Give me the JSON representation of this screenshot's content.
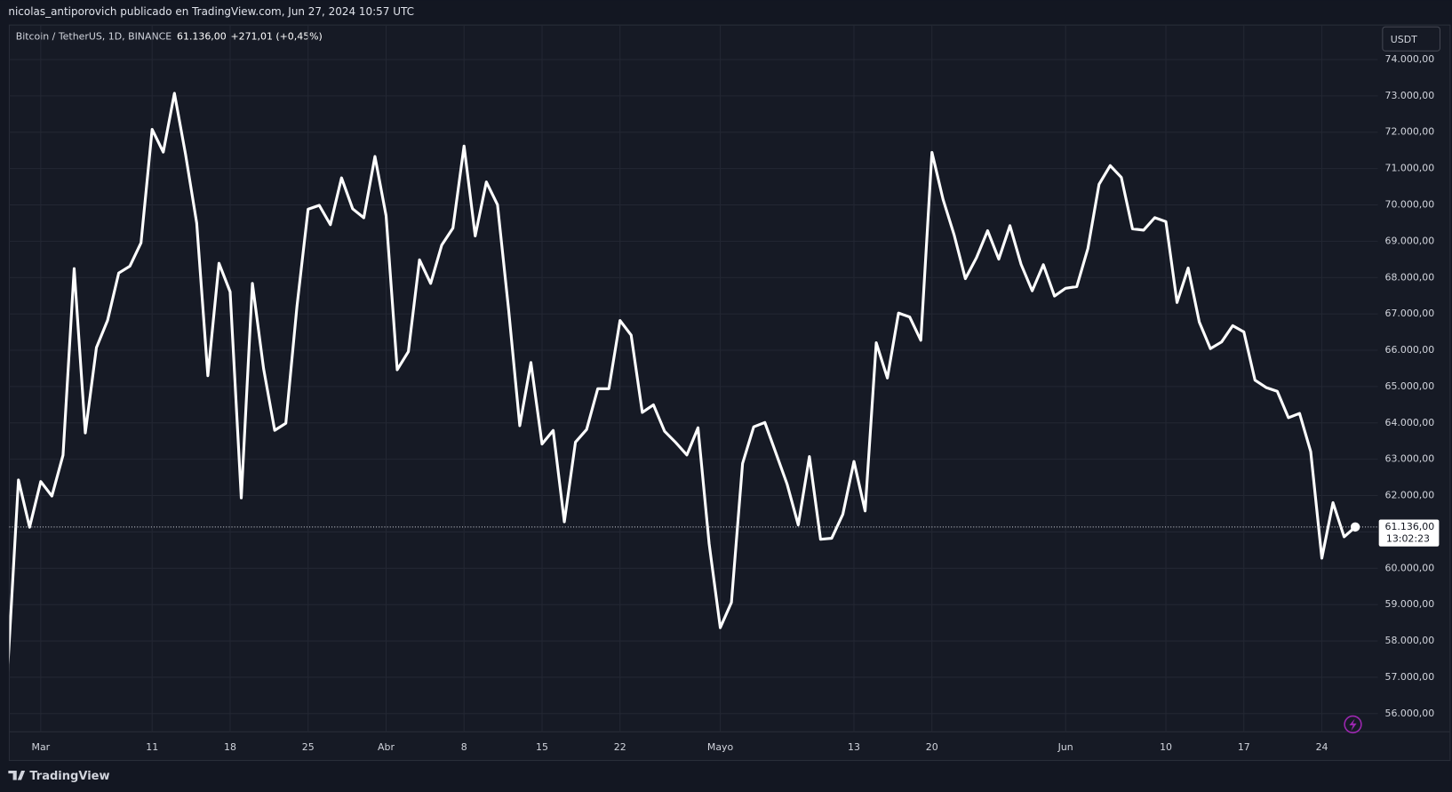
{
  "header": {
    "publisher": "nicolas_antiporovich publicado en TradingView.com, Jun 27, 2024 10:57 UTC"
  },
  "chart_data": {
    "type": "line",
    "symbol": "Bitcoin / TetherUS, 1D, BINANCE",
    "last_price": "61.136,00",
    "change": "+271,01 (+0,45%)",
    "currency": "USDT",
    "last_label": "61.136,00",
    "countdown": "13:02:23",
    "categories": [
      null,
      null,
      null,
      "Mar",
      null,
      null,
      null,
      null,
      null,
      null,
      null,
      null,
      null,
      "11",
      null,
      null,
      null,
      null,
      null,
      null,
      "18",
      null,
      null,
      null,
      null,
      null,
      null,
      "25",
      null,
      null,
      null,
      null,
      null,
      null,
      "Abr",
      null,
      null,
      null,
      null,
      null,
      null,
      "8",
      null,
      null,
      null,
      null,
      null,
      null,
      "15",
      null,
      null,
      null,
      null,
      null,
      null,
      "22",
      null,
      null,
      null,
      null,
      null,
      null,
      null,
      null,
      "Mayo",
      null,
      null,
      null,
      null,
      null,
      null,
      null,
      null,
      null,
      null,
      null,
      "13",
      null,
      null,
      null,
      null,
      null,
      null,
      "20",
      null,
      null,
      null,
      null,
      null,
      null,
      null,
      null,
      null,
      null,
      null,
      "Jun",
      null,
      null,
      null,
      null,
      null,
      null,
      null,
      null,
      "10",
      null,
      null,
      null,
      null,
      null,
      null,
      "17",
      null,
      null,
      null,
      null,
      null,
      null,
      "24",
      null,
      null,
      null
    ],
    "values": [
      57050,
      62432,
      61130,
      62387,
      61987,
      63113,
      68245,
      63724,
      66074,
      66823,
      68124,
      68313,
      68955,
      72078,
      71452,
      73072,
      71388,
      69499,
      65300,
      68393,
      67609,
      61937,
      67841,
      65501,
      63796,
      63990,
      67209,
      69880,
      69988,
      69455,
      70744,
      69892,
      69645,
      71333,
      69702,
      65463,
      65963,
      68488,
      67838,
      68897,
      69360,
      71620,
      69146,
      70631,
      70006,
      67116,
      63924,
      65662,
      63419,
      63793,
      61277,
      63470,
      63818,
      64940,
      64941,
      66819,
      66414,
      64289,
      64498,
      63770,
      63461,
      63118,
      63866,
      60672,
      58364,
      59060,
      62882,
      63892,
      64012,
      63165,
      62312,
      61193,
      63074,
      60799,
      60825,
      61484,
      62940,
      61577,
      66206,
      65235,
      67024,
      66915,
      66274,
      71446,
      70148,
      69166,
      67969,
      68549,
      69290,
      68507,
      69428,
      68366,
      67635,
      68354,
      67491,
      67706,
      67751,
      68804,
      70567,
      71082,
      70757,
      69342,
      69305,
      69648,
      69540,
      67314,
      68263,
      66773,
      66044,
      66228,
      66676,
      66504,
      65175,
      64974,
      64869,
      64143,
      64262,
      63211,
      60277,
      61806,
      60865,
      61136
    ],
    "color": "#ffffff",
    "ylim": [
      55500,
      74950
    ],
    "yticks": [
      {
        "value": 56000,
        "label": "56.000,00"
      },
      {
        "value": 57000,
        "label": "57.000,00"
      },
      {
        "value": 58000,
        "label": "58.000,00"
      },
      {
        "value": 59000,
        "label": "59.000,00"
      },
      {
        "value": 60000,
        "label": "60.000,00"
      },
      {
        "value": 61000,
        "label": "61.000,00"
      },
      {
        "value": 62000,
        "label": "62.000,00"
      },
      {
        "value": 63000,
        "label": "63.000,00"
      },
      {
        "value": 64000,
        "label": "64.000,00"
      },
      {
        "value": 65000,
        "label": "65.000,00"
      },
      {
        "value": 66000,
        "label": "66.000,00"
      },
      {
        "value": 67000,
        "label": "67.000,00"
      },
      {
        "value": 68000,
        "label": "68.000,00"
      },
      {
        "value": 69000,
        "label": "69.000,00"
      },
      {
        "value": 70000,
        "label": "70.000,00"
      },
      {
        "value": 71000,
        "label": "71.000,00"
      },
      {
        "value": 72000,
        "label": "72.000,00"
      },
      {
        "value": 73000,
        "label": "73.000,00"
      },
      {
        "value": 74000,
        "label": "74.000,00"
      }
    ],
    "grid": true
  },
  "footer": {
    "brand": "TradingView"
  }
}
